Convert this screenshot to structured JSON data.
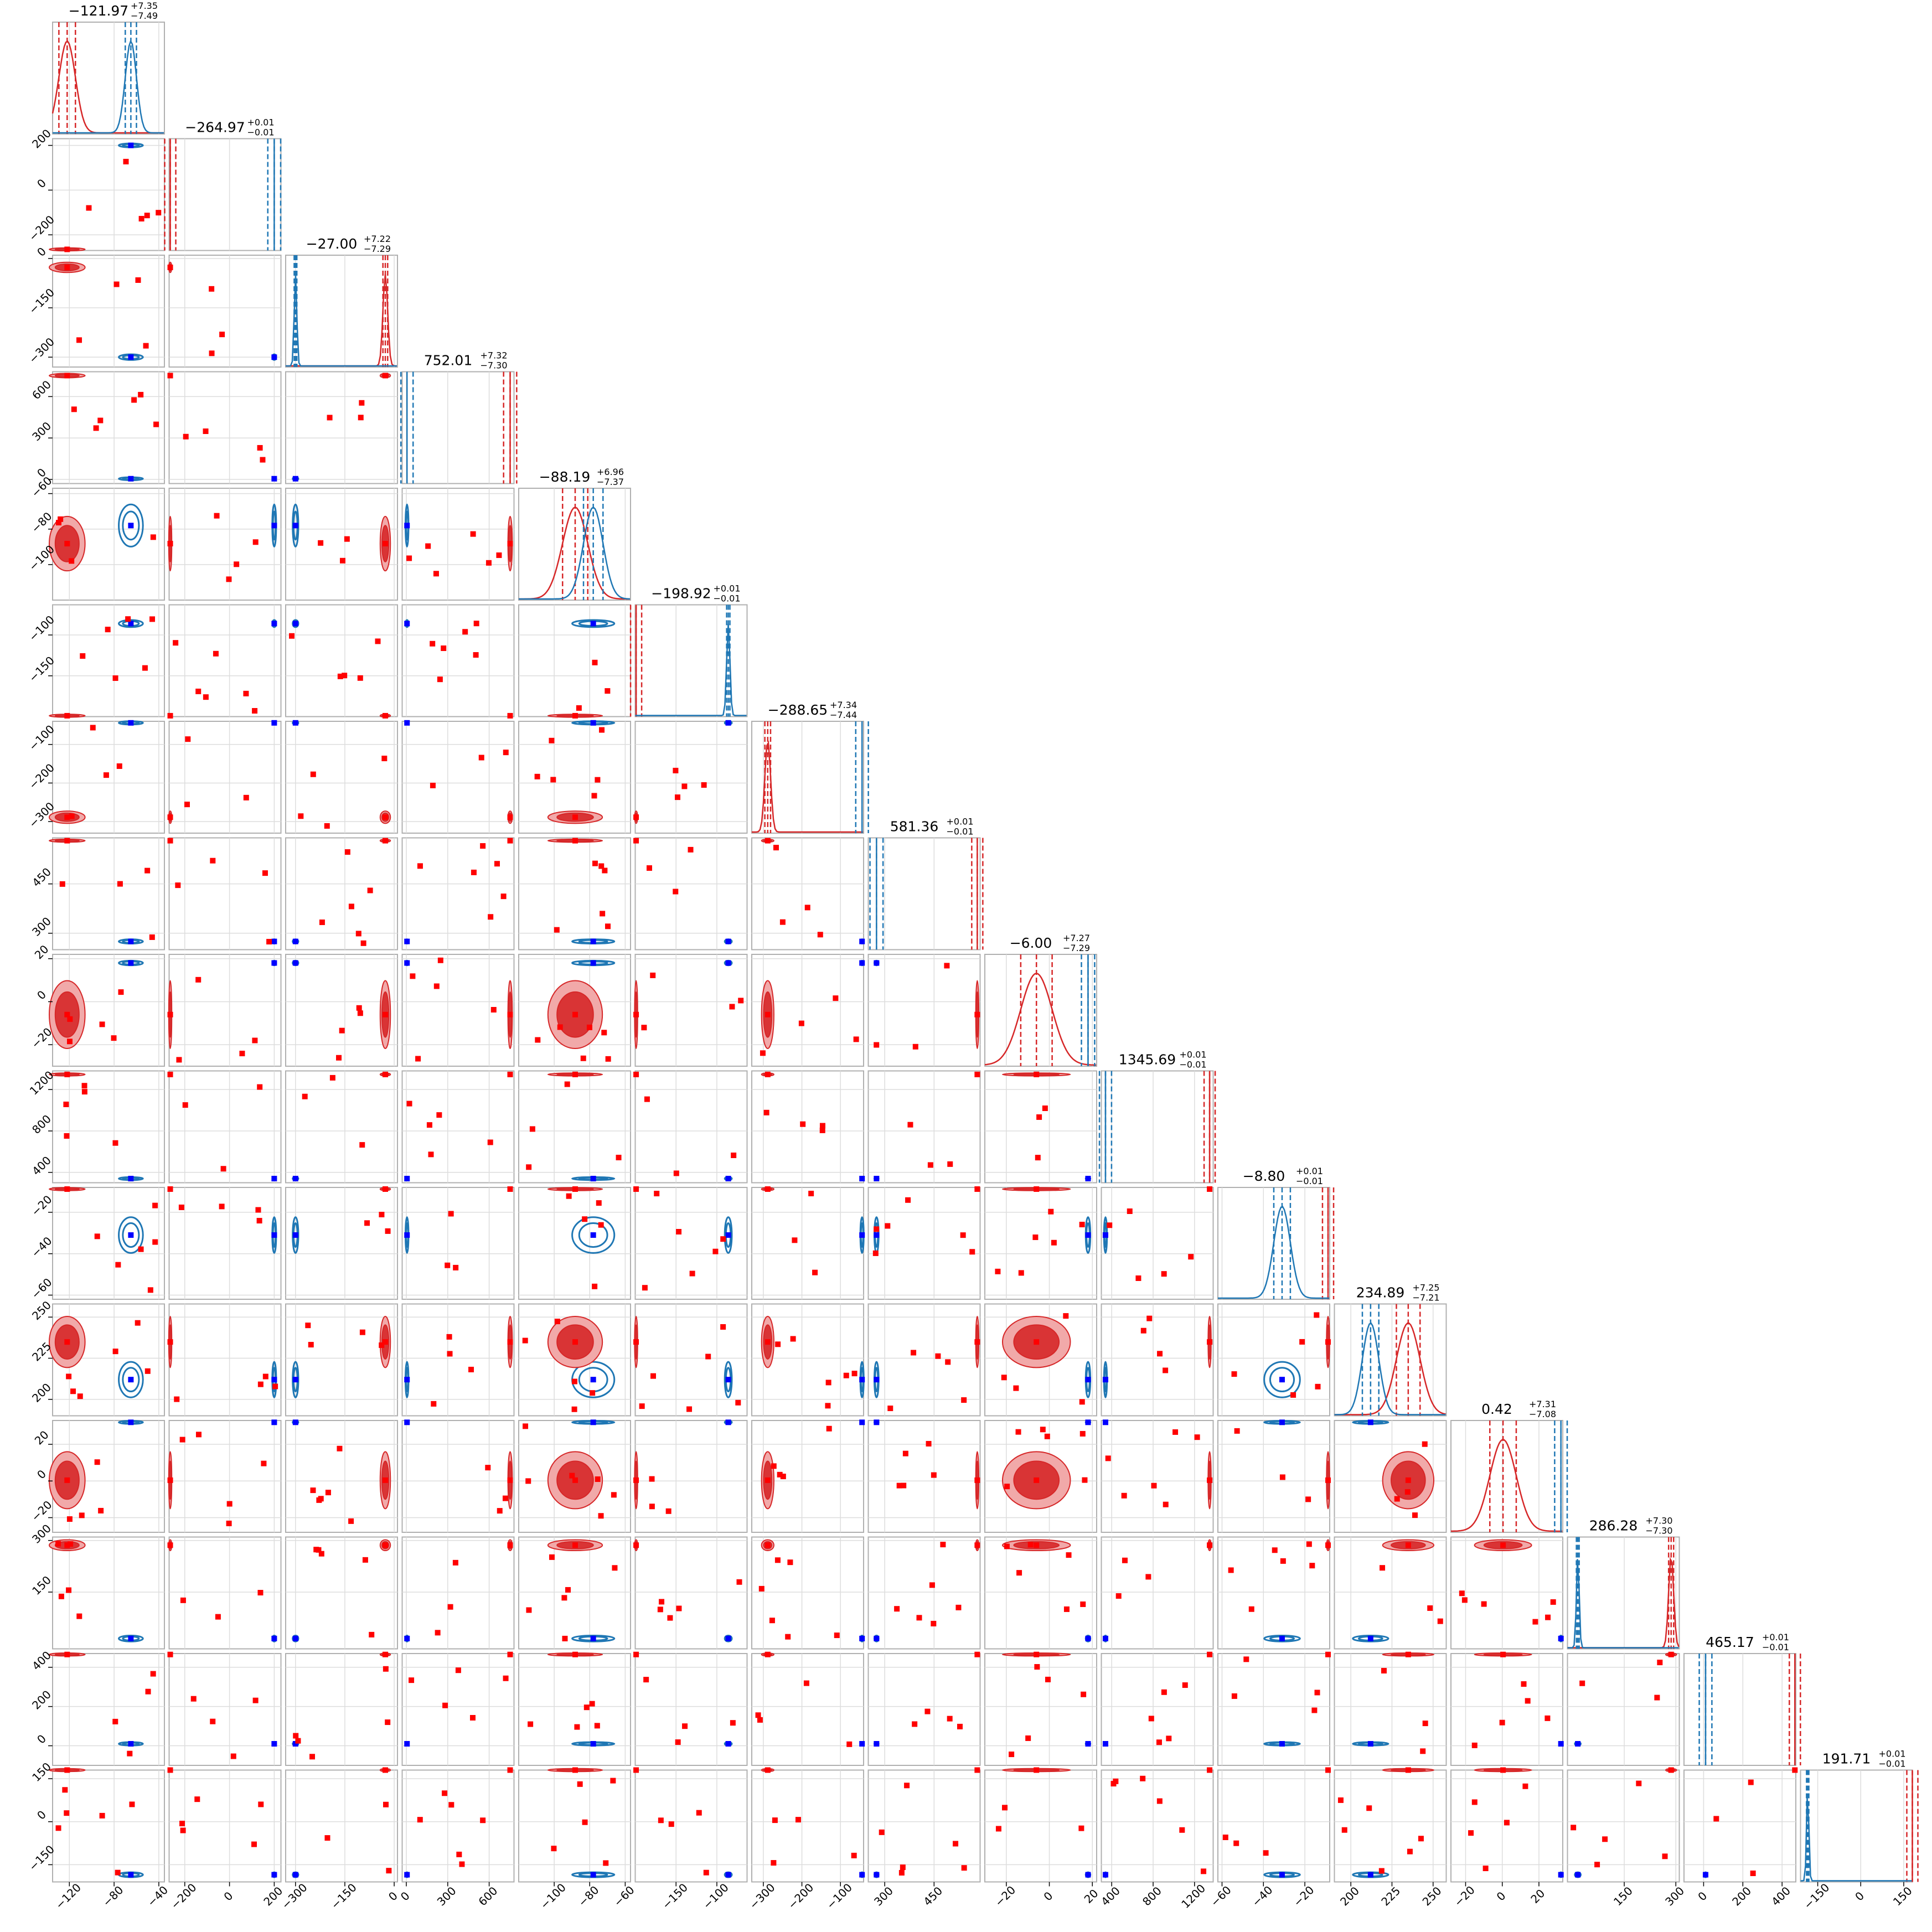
{
  "chart_data": {
    "type": "corner",
    "grid": true,
    "colors": {
      "blue": "#1f77b4",
      "blue_marker": "#0000ff",
      "red": "#d62728",
      "red_marker": "#ff0000",
      "red_fill": "#f1a9a9"
    },
    "panel_titles": [
      {
        "value": "−121.97",
        "plus": "+7.35",
        "minus": "−7.49"
      },
      {
        "value": "−264.97",
        "plus": "+0.01",
        "minus": "−0.01"
      },
      {
        "value": "−27.00",
        "plus": "+7.22",
        "minus": "−7.29"
      },
      {
        "value": "752.01",
        "plus": "+7.32",
        "minus": "−7.30"
      },
      {
        "value": "−88.19",
        "plus": "+6.96",
        "minus": "−7.37"
      },
      {
        "value": "−198.92",
        "plus": "+0.01",
        "minus": "−0.01"
      },
      {
        "value": "−288.65",
        "plus": "+7.34",
        "minus": "−7.44"
      },
      {
        "value": "581.36",
        "plus": "+0.01",
        "minus": "−0.01"
      },
      {
        "value": "−6.00",
        "plus": "+7.27",
        "minus": "−7.29"
      },
      {
        "value": "1345.69",
        "plus": "+0.01",
        "minus": "−0.01"
      },
      {
        "value": "−8.80",
        "plus": "+0.01",
        "minus": "−0.01"
      },
      {
        "value": "234.89",
        "plus": "+7.25",
        "minus": "−7.21"
      },
      {
        "value": "0.42",
        "plus": "+7.31",
        "minus": "−7.08"
      },
      {
        "value": "286.28",
        "plus": "+7.30",
        "minus": "−7.30"
      },
      {
        "value": "465.17",
        "plus": "+0.01",
        "minus": "−0.01"
      },
      {
        "value": "191.71",
        "plus": "+0.01",
        "minus": "−0.01"
      }
    ],
    "params": [
      {
        "range": [
          -135,
          -35
        ],
        "ticks": [
          {
            "v": -120,
            "l": "−120"
          },
          {
            "v": -80,
            "l": "−80"
          },
          {
            "v": -40,
            "l": "−40"
          }
        ],
        "red": -121.97,
        "red_sd": 7.4,
        "blue": -65,
        "blue_sd": 5
      },
      {
        "range": [
          -270,
          230
        ],
        "ticks": [
          {
            "v": -200,
            "l": "−200"
          },
          {
            "v": 0,
            "l": "0"
          },
          {
            "v": 200,
            "l": "200"
          }
        ],
        "red": -264.97,
        "red_sd": 0.01,
        "blue": 200,
        "blue_sd": 4
      },
      {
        "range": [
          -330,
          10
        ],
        "ticks": [
          {
            "v": -300,
            "l": "−300"
          },
          {
            "v": -150,
            "l": "−150"
          },
          {
            "v": 0,
            "l": "0"
          }
        ],
        "red": -27.0,
        "red_sd": 7.2,
        "blue": -300,
        "blue_sd": 4
      },
      {
        "range": [
          -30,
          780
        ],
        "ticks": [
          {
            "v": 0,
            "l": "0"
          },
          {
            "v": 300,
            "l": "300"
          },
          {
            "v": 600,
            "l": "600"
          }
        ],
        "red": 752.01,
        "red_sd": 7.3,
        "blue": 5,
        "blue_sd": 4
      },
      {
        "range": [
          -120,
          -57
        ],
        "ticks": [
          {
            "v": -100,
            "l": "−100"
          },
          {
            "v": -80,
            "l": "−80"
          },
          {
            "v": -60,
            "l": "−60"
          }
        ],
        "red": -88.19,
        "red_sd": 7.1,
        "blue": -78,
        "blue_sd": 5.5
      },
      {
        "range": [
          -200,
          -63
        ],
        "ticks": [
          {
            "v": -150,
            "l": "−150"
          },
          {
            "v": -100,
            "l": "−100"
          }
        ],
        "red": -198.92,
        "red_sd": 0.01,
        "blue": -86,
        "blue_sd": 2
      },
      {
        "range": [
          -330,
          -40
        ],
        "ticks": [
          {
            "v": -300,
            "l": "−300"
          },
          {
            "v": -200,
            "l": "−200"
          },
          {
            "v": -100,
            "l": "−100"
          }
        ],
        "red": -288.65,
        "red_sd": 7.4,
        "blue": -44,
        "blue_sd": 2
      },
      {
        "range": [
          250,
          590
        ],
        "ticks": [
          {
            "v": 300,
            "l": "300"
          },
          {
            "v": 450,
            "l": "450"
          }
        ],
        "red": 581.36,
        "red_sd": 0.01,
        "blue": 275,
        "blue_sd": 3
      },
      {
        "range": [
          -30,
          22
        ],
        "ticks": [
          {
            "v": -20,
            "l": "−20"
          },
          {
            "v": 0,
            "l": "0"
          },
          {
            "v": 20,
            "l": "20"
          }
        ],
        "red": -6.0,
        "red_sd": 7.3,
        "blue": 18,
        "blue_sd": 0.5
      },
      {
        "range": [
          300,
          1380
        ],
        "ticks": [
          {
            "v": 400,
            "l": "400"
          },
          {
            "v": 800,
            "l": "800"
          },
          {
            "v": 1200,
            "l": "1200"
          }
        ],
        "red": 1345.69,
        "red_sd": 0.01,
        "blue": 340,
        "blue_sd": 5
      },
      {
        "range": [
          -62,
          -8
        ],
        "ticks": [
          {
            "v": -60,
            "l": "−60"
          },
          {
            "v": -40,
            "l": "−40"
          },
          {
            "v": -20,
            "l": "−20"
          }
        ],
        "red": -8.8,
        "red_sd": 0.01,
        "blue": -31,
        "blue_sd": 4
      },
      {
        "range": [
          190,
          258
        ],
        "ticks": [
          {
            "v": 200,
            "l": "200"
          },
          {
            "v": 225,
            "l": "225"
          },
          {
            "v": 250,
            "l": "250"
          }
        ],
        "red": 234.89,
        "red_sd": 7.2,
        "blue": 212,
        "blue_sd": 5
      },
      {
        "range": [
          -28,
          33
        ],
        "ticks": [
          {
            "v": -20,
            "l": "−20"
          },
          {
            "v": 0,
            "l": "0"
          },
          {
            "v": 20,
            "l": "20"
          }
        ],
        "red": 0.42,
        "red_sd": 7.2,
        "blue": 32,
        "blue_sd": 0.4
      },
      {
        "range": [
          -15,
          310
        ],
        "ticks": [
          {
            "v": 150,
            "l": "150"
          },
          {
            "v": 300,
            "l": "300"
          }
        ],
        "red": 286.28,
        "red_sd": 7.3,
        "blue": 15,
        "blue_sd": 4
      },
      {
        "range": [
          -100,
          470
        ],
        "ticks": [
          {
            "v": 0,
            "l": "0"
          },
          {
            "v": 200,
            "l": "200"
          },
          {
            "v": 400,
            "l": "400"
          }
        ],
        "red": 465.17,
        "red_sd": 0.01,
        "blue": 10,
        "blue_sd": 4
      },
      {
        "range": [
          -210,
          180
        ],
        "ticks": [
          {
            "v": -150,
            "l": "−150"
          },
          {
            "v": 0,
            "l": "0"
          },
          {
            "v": 150,
            "l": "150"
          }
        ],
        "red": 191.71,
        "red_sd": 0.01,
        "blue": -185,
        "blue_sd": 4
      }
    ]
  }
}
